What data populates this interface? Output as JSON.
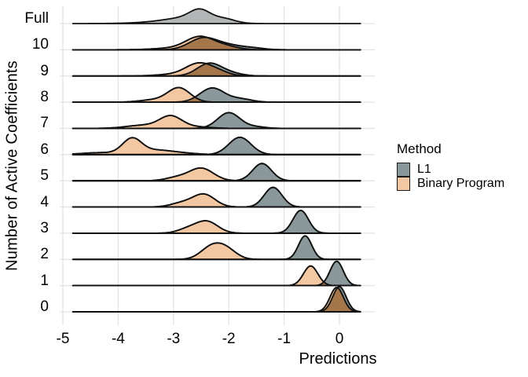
{
  "figure": {
    "y_axis_title": "Number of Active Coefficients",
    "x_axis_title": "Predictions"
  },
  "legend": {
    "title": "Method",
    "items": [
      {
        "label": "L1",
        "color_key": "l1"
      },
      {
        "label": "Binary Program",
        "color_key": "binary_program"
      }
    ]
  },
  "chart_data": {
    "type": "ridgeline-density",
    "title": "",
    "xlabel": "Predictions",
    "ylabel": "Number of Active Coefficients",
    "x_axis": {
      "ticks": [
        -5,
        -4,
        -3,
        -2,
        -1,
        0
      ],
      "tick_labels": [
        "-5",
        "-4",
        "-3",
        "-2",
        "-1",
        "0"
      ],
      "range": [
        -5.1,
        0.65
      ],
      "grid": true
    },
    "y_axis": {
      "categories": [
        "Full",
        "10",
        "9",
        "8",
        "7",
        "6",
        "5",
        "4",
        "3",
        "2",
        "1",
        "0"
      ],
      "grid": true
    },
    "legend_position": "right",
    "colors": {
      "l1": "#8b989b",
      "binary_program": "#f3c7a1",
      "full_model": "#b3b6b6",
      "overlap": "#a4764a",
      "outline": "#111111",
      "gridline": "#e3e3e3"
    },
    "note": "Each row shows kernel density estimates of predictions; components are gaussian mixtures {mean, sd in x-units, peak in px}",
    "rows": [
      {
        "label": "Full",
        "curves": [
          {
            "method": "Full model",
            "color": "full_model",
            "components": [
              {
                "mean": -2.52,
                "sd": 0.18,
                "peak": 12
              },
              {
                "mean": -2.72,
                "sd": 0.38,
                "peak": 6
              },
              {
                "mean": -2.08,
                "sd": 0.2,
                "peak": 5
              },
              {
                "mean": -3.1,
                "sd": 0.5,
                "peak": 2
              }
            ]
          }
        ]
      },
      {
        "label": "10",
        "curves": [
          {
            "method": "L1",
            "color": "l1",
            "components": [
              {
                "mean": -2.46,
                "sd": 0.25,
                "peak": 15
              },
              {
                "mean": -1.98,
                "sd": 0.24,
                "peak": 5
              },
              {
                "mean": -1.55,
                "sd": 0.2,
                "peak": 2
              }
            ]
          },
          {
            "method": "Binary Program",
            "color": "binary_program",
            "components": [
              {
                "mean": -2.52,
                "sd": 0.25,
                "peak": 16
              },
              {
                "mean": -2.05,
                "sd": 0.22,
                "peak": 4
              },
              {
                "mean": -3.0,
                "sd": 0.35,
                "peak": 2
              }
            ]
          }
        ]
      },
      {
        "label": "9",
        "curves": [
          {
            "method": "L1",
            "color": "l1",
            "components": [
              {
                "mean": -2.35,
                "sd": 0.22,
                "peak": 16
              },
              {
                "mean": -1.95,
                "sd": 0.2,
                "peak": 3
              }
            ]
          },
          {
            "method": "Binary Program",
            "color": "binary_program",
            "components": [
              {
                "mean": -2.55,
                "sd": 0.23,
                "peak": 15
              },
              {
                "mean": -2.2,
                "sd": 0.2,
                "peak": 5
              },
              {
                "mean": -3.0,
                "sd": 0.3,
                "peak": 2
              }
            ]
          }
        ]
      },
      {
        "label": "8",
        "curves": [
          {
            "method": "L1",
            "color": "l1",
            "components": [
              {
                "mean": -2.3,
                "sd": 0.22,
                "peak": 18
              },
              {
                "mean": -1.78,
                "sd": 0.2,
                "peak": 4
              }
            ]
          },
          {
            "method": "Binary Program",
            "color": "binary_program",
            "components": [
              {
                "mean": -2.9,
                "sd": 0.2,
                "peak": 18
              },
              {
                "mean": -3.35,
                "sd": 0.25,
                "peak": 3
              }
            ]
          }
        ]
      },
      {
        "label": "7",
        "curves": [
          {
            "method": "L1",
            "color": "l1",
            "components": [
              {
                "mean": -2.0,
                "sd": 0.2,
                "peak": 20
              },
              {
                "mean": -1.52,
                "sd": 0.18,
                "peak": 2
              }
            ]
          },
          {
            "method": "Binary Program",
            "color": "binary_program",
            "components": [
              {
                "mean": -3.05,
                "sd": 0.2,
                "peak": 15
              },
              {
                "mean": -3.55,
                "sd": 0.3,
                "peak": 4
              },
              {
                "mean": -2.6,
                "sd": 0.25,
                "peak": 2
              }
            ]
          }
        ]
      },
      {
        "label": "6",
        "curves": [
          {
            "method": "L1",
            "color": "l1",
            "components": [
              {
                "mean": -1.8,
                "sd": 0.2,
                "peak": 22
              }
            ]
          },
          {
            "method": "Binary Program",
            "color": "binary_program",
            "components": [
              {
                "mean": -3.75,
                "sd": 0.17,
                "peak": 19
              },
              {
                "mean": -3.35,
                "sd": 0.28,
                "peak": 5
              },
              {
                "mean": -4.3,
                "sd": 0.35,
                "peak": 2.5
              },
              {
                "mean": -2.9,
                "sd": 0.3,
                "peak": 2
              }
            ]
          }
        ]
      },
      {
        "label": "5",
        "curves": [
          {
            "method": "L1",
            "color": "l1",
            "components": [
              {
                "mean": -1.4,
                "sd": 0.17,
                "peak": 22
              }
            ]
          },
          {
            "method": "Binary Program",
            "color": "binary_program",
            "components": [
              {
                "mean": -2.5,
                "sd": 0.22,
                "peak": 16
              },
              {
                "mean": -2.95,
                "sd": 0.2,
                "peak": 4
              }
            ]
          }
        ]
      },
      {
        "label": "4",
        "curves": [
          {
            "method": "L1",
            "color": "l1",
            "components": [
              {
                "mean": -1.2,
                "sd": 0.16,
                "peak": 25
              }
            ]
          },
          {
            "method": "Binary Program",
            "color": "binary_program",
            "components": [
              {
                "mean": -2.45,
                "sd": 0.2,
                "peak": 16
              },
              {
                "mean": -2.85,
                "sd": 0.2,
                "peak": 5
              }
            ]
          }
        ]
      },
      {
        "label": "3",
        "curves": [
          {
            "method": "L1",
            "color": "l1",
            "components": [
              {
                "mean": -0.7,
                "sd": 0.14,
                "peak": 29
              }
            ]
          },
          {
            "method": "Binary Program",
            "color": "binary_program",
            "components": [
              {
                "mean": -2.4,
                "sd": 0.2,
                "peak": 15
              },
              {
                "mean": -2.75,
                "sd": 0.18,
                "peak": 5
              }
            ]
          }
        ]
      },
      {
        "label": "2",
        "curves": [
          {
            "method": "L1",
            "color": "l1",
            "components": [
              {
                "mean": -0.62,
                "sd": 0.12,
                "peak": 30
              }
            ]
          },
          {
            "method": "Binary Program",
            "color": "binary_program",
            "components": [
              {
                "mean": -2.33,
                "sd": 0.19,
                "peak": 14
              },
              {
                "mean": -2.06,
                "sd": 0.19,
                "peak": 13
              }
            ]
          }
        ]
      },
      {
        "label": "1",
        "curves": [
          {
            "method": "L1",
            "color": "l1",
            "components": [
              {
                "mean": -0.05,
                "sd": 0.12,
                "peak": 31
              }
            ]
          },
          {
            "method": "Binary Program",
            "color": "binary_program",
            "components": [
              {
                "mean": -0.52,
                "sd": 0.13,
                "peak": 25
              }
            ]
          }
        ]
      },
      {
        "label": "0",
        "curves": [
          {
            "method": "L1",
            "color": "l1",
            "components": [
              {
                "mean": 0.0,
                "sd": 0.12,
                "peak": 32
              }
            ]
          },
          {
            "method": "Binary Program",
            "color": "binary_program",
            "components": [
              {
                "mean": -0.05,
                "sd": 0.12,
                "peak": 31
              }
            ]
          }
        ]
      }
    ]
  }
}
